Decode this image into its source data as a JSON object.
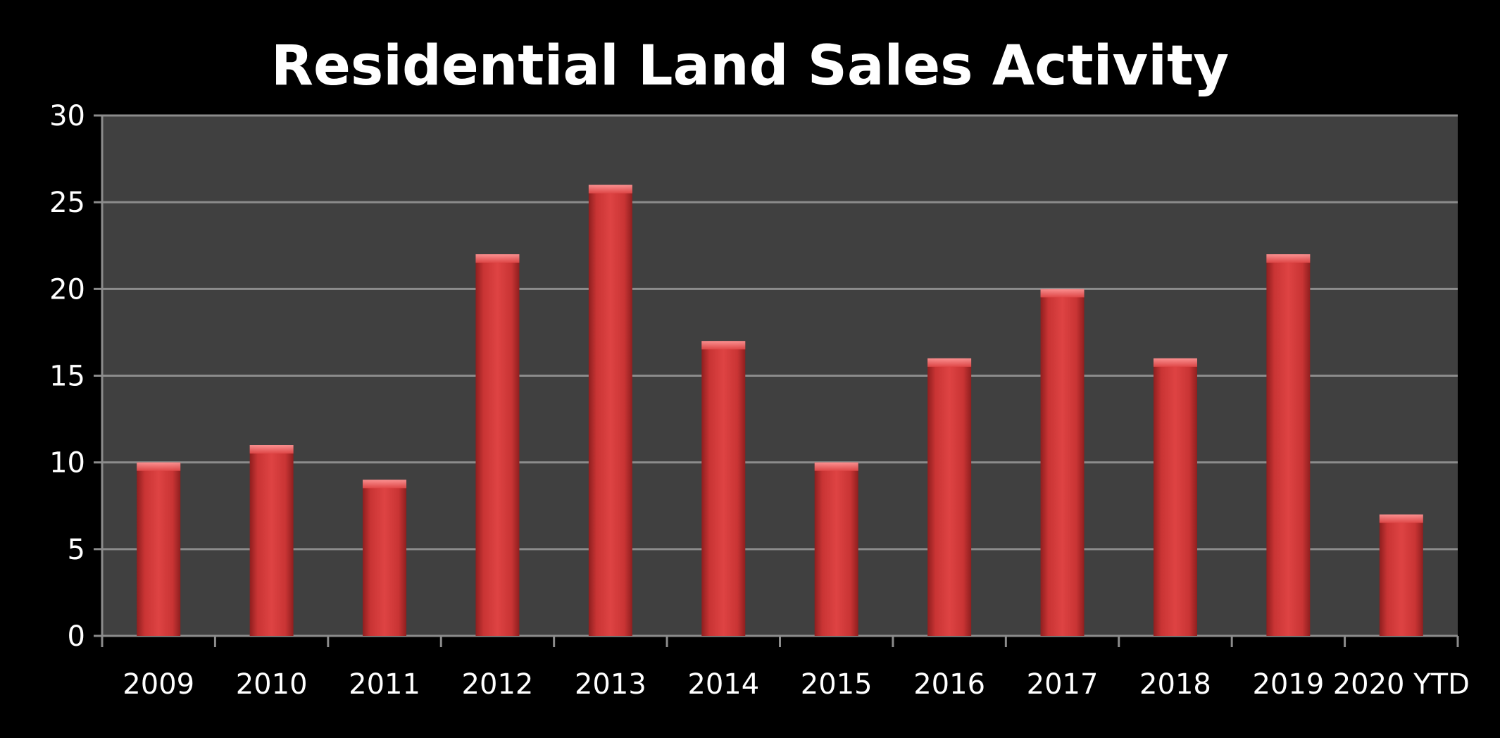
{
  "chart_data": {
    "type": "bar",
    "title": "Residential Land Sales Activity",
    "xlabel": "",
    "ylabel": "",
    "categories": [
      "2009",
      "2010",
      "2011",
      "2012",
      "2013",
      "2014",
      "2015",
      "2016",
      "2017",
      "2018",
      "2019",
      "2020 YTD"
    ],
    "values": [
      10,
      11,
      9,
      22,
      26,
      17,
      10,
      16,
      20,
      16,
      22,
      7
    ],
    "ylim": [
      0,
      30
    ],
    "yticks": [
      0,
      5,
      10,
      15,
      20,
      25,
      30
    ],
    "grid": true,
    "legend": "none",
    "colors": {
      "background": "#000000",
      "plot_area": "#404040",
      "gridline": "#8c8c8c",
      "bar": "#d63a3a",
      "text": "#ffffff"
    }
  }
}
